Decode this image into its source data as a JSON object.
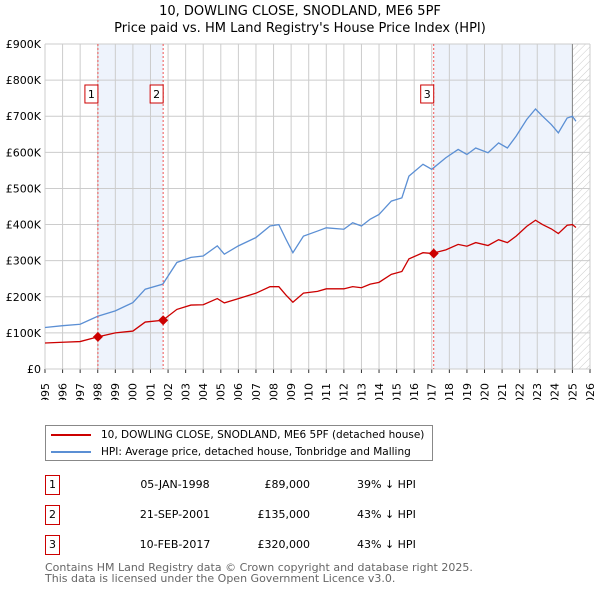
{
  "chart_data": {
    "type": "line",
    "title": "10, DOWLING CLOSE, SNODLAND, ME6 5PF",
    "subtitle": "Price paid vs. HM Land Registry's House Price Index (HPI)",
    "xlim": [
      1995,
      2026
    ],
    "ylim": [
      0,
      900000
    ],
    "xticks": [
      "1995",
      "1996",
      "1997",
      "1998",
      "1999",
      "2000",
      "2001",
      "2002",
      "2003",
      "2004",
      "2005",
      "2006",
      "2007",
      "2008",
      "2009",
      "2010",
      "2011",
      "2012",
      "2013",
      "2014",
      "2015",
      "2016",
      "2017",
      "2018",
      "2019",
      "2020",
      "2021",
      "2022",
      "2023",
      "2024",
      "2025",
      "2026"
    ],
    "yticks": [
      "£0",
      "£100K",
      "£200K",
      "£300K",
      "£400K",
      "£500K",
      "£600K",
      "£700K",
      "£800K",
      "£900K"
    ],
    "grid": true,
    "x": [
      1995,
      1996,
      1997,
      1998,
      1999,
      2000,
      2000.7,
      2001.7,
      2002.5,
      2003.3,
      2004,
      2004.8,
      2005.2,
      2006,
      2007,
      2007.8,
      2008.3,
      2008.7,
      2009.1,
      2009.7,
      2010.5,
      2011,
      2012,
      2012.5,
      2013,
      2013.5,
      2014,
      2014.7,
      2015.3,
      2015.7,
      2016.5,
      2017,
      2017.8,
      2018.5,
      2019,
      2019.5,
      2020.2,
      2020.8,
      2021.3,
      2021.8,
      2022.4,
      2022.9,
      2023.3,
      2023.8,
      2024.2,
      2024.7,
      2025,
      2025.2
    ],
    "series": [
      {
        "name": "10, DOWLING CLOSE, SNODLAND, ME6 5PF (detached house)",
        "color": "#cc0000",
        "values": [
          72,
          74,
          76,
          89,
          100,
          105,
          130,
          135,
          165,
          177,
          178,
          195,
          183,
          195,
          210,
          228,
          228,
          205,
          185,
          210,
          215,
          222,
          222,
          228,
          225,
          235,
          240,
          262,
          270,
          305,
          322,
          320,
          330,
          345,
          340,
          350,
          342,
          358,
          350,
          368,
          395,
          412,
          400,
          388,
          375,
          398,
          400,
          392
        ]
      },
      {
        "name": "HPI: Average price, detached house, Tonbridge and Malling",
        "color": "#5b8fd4",
        "values": [
          115,
          120,
          124,
          146,
          161,
          184,
          221,
          235,
          295,
          309,
          313,
          341,
          318,
          341,
          364,
          396,
          400,
          360,
          322,
          368,
          382,
          391,
          387,
          405,
          396,
          415,
          428,
          465,
          474,
          534,
          567,
          553,
          585,
          608,
          594,
          612,
          599,
          626,
          612,
          645,
          691,
          720,
          700,
          677,
          654,
          695,
          700,
          686
        ]
      }
    ],
    "value_unit": "thousand GBP",
    "sales": [
      {
        "label": "1",
        "year": 1998.01,
        "price": 89000,
        "date": "05-JAN-1998",
        "price_text": "£89,000",
        "hpi": "39% ↓ HPI"
      },
      {
        "label": "2",
        "year": 2001.72,
        "price": 135000,
        "date": "21-SEP-2001",
        "price_text": "£135,000",
        "hpi": "43% ↓ HPI"
      },
      {
        "label": "3",
        "year": 2017.11,
        "price": 320000,
        "date": "10-FEB-2017",
        "price_text": "£320,000",
        "hpi": "43% ↓ HPI"
      }
    ],
    "forecast_from": 2025.0,
    "legend_position": "below"
  },
  "footer": {
    "line1": "Contains HM Land Registry data © Crown copyright and database right 2025.",
    "line2": "This data is licensed under the Open Government Licence v3.0."
  }
}
